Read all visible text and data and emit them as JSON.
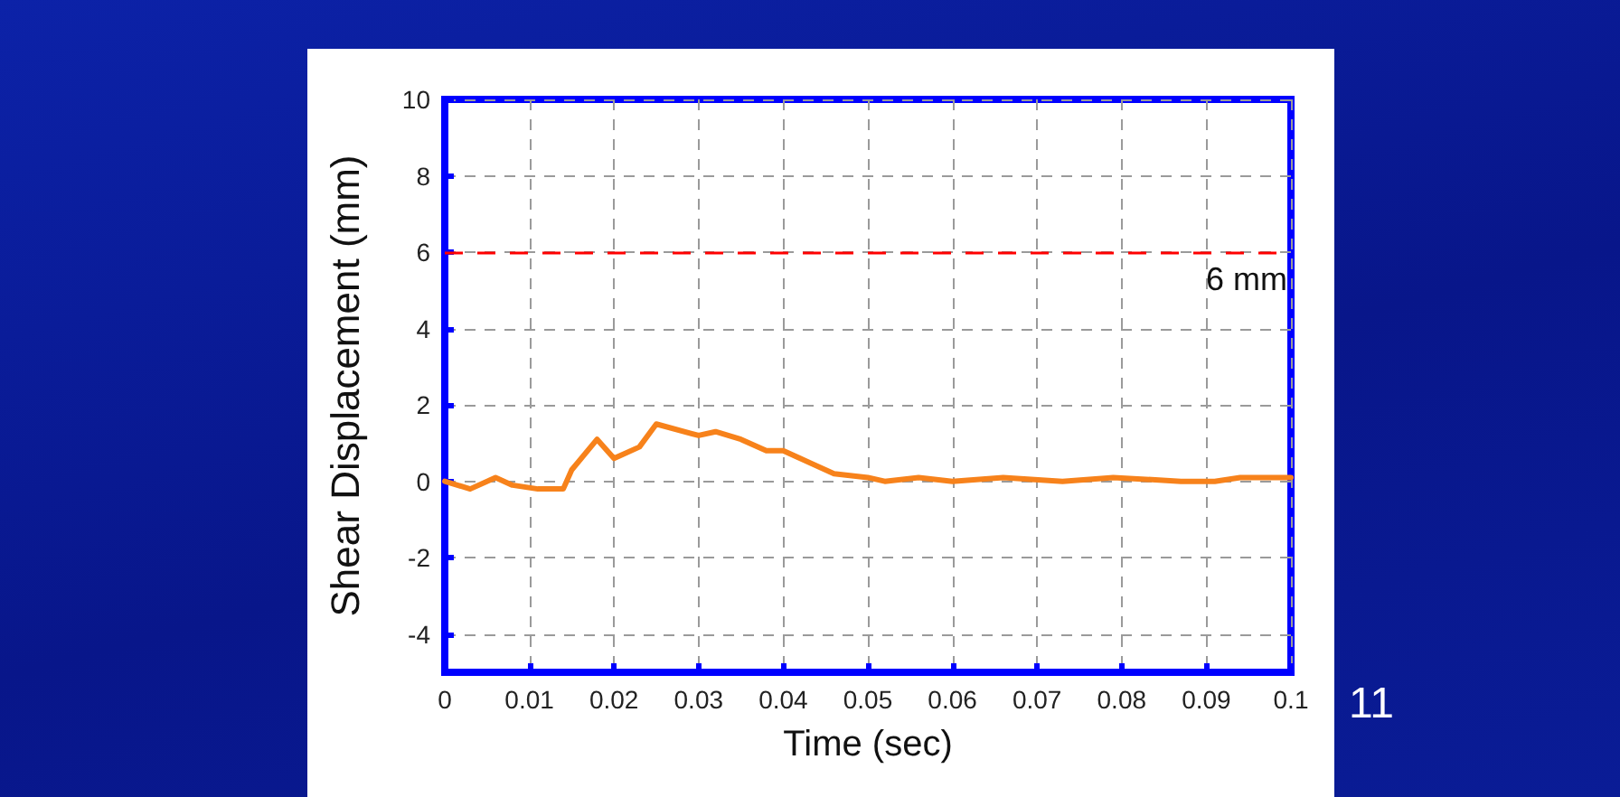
{
  "chart_data": {
    "type": "line",
    "xlabel": "Time (sec)",
    "ylabel": "Shear Displacement (mm)",
    "annotations": [
      "11"
    ],
    "x": [
      0,
      0.003,
      0.006,
      0.008,
      0.011,
      0.014,
      0.015,
      0.018,
      0.02,
      0.023,
      0.025,
      0.03,
      0.032,
      0.035,
      0.038,
      0.04,
      0.042,
      0.046,
      0.05,
      0.052,
      0.056,
      0.06,
      0.066,
      0.073,
      0.079,
      0.087,
      0.091,
      0.094,
      0.1
    ],
    "series": [
      {
        "color": "#f7821b",
        "values": [
          0,
          -0.2,
          0.1,
          -0.1,
          -0.2,
          -0.2,
          0.3,
          1.1,
          0.6,
          0.9,
          1.5,
          1.2,
          1.3,
          1.1,
          0.8,
          0.8,
          0.6,
          0.2,
          0.1,
          0,
          0.1,
          0,
          0.1,
          0,
          0.1,
          0,
          0,
          0.1,
          0.1
        ]
      }
    ],
    "xlim": [
      0,
      0.1
    ],
    "xticks": [
      0,
      0.01,
      0.02,
      0.03,
      0.04,
      0.05,
      0.06,
      0.07,
      0.08,
      0.09,
      0.1
    ],
    "ylim": [
      -5,
      10
    ],
    "yticks": [
      -4,
      -2,
      0,
      2,
      4,
      6,
      8,
      10
    ],
    "grid": true,
    "marker": "none",
    "ref_lines": [
      {
        "axis": "y",
        "value": 6,
        "label": "6 mm",
        "color": "#ff0000",
        "line_style": "dashed"
      }
    ]
  }
}
